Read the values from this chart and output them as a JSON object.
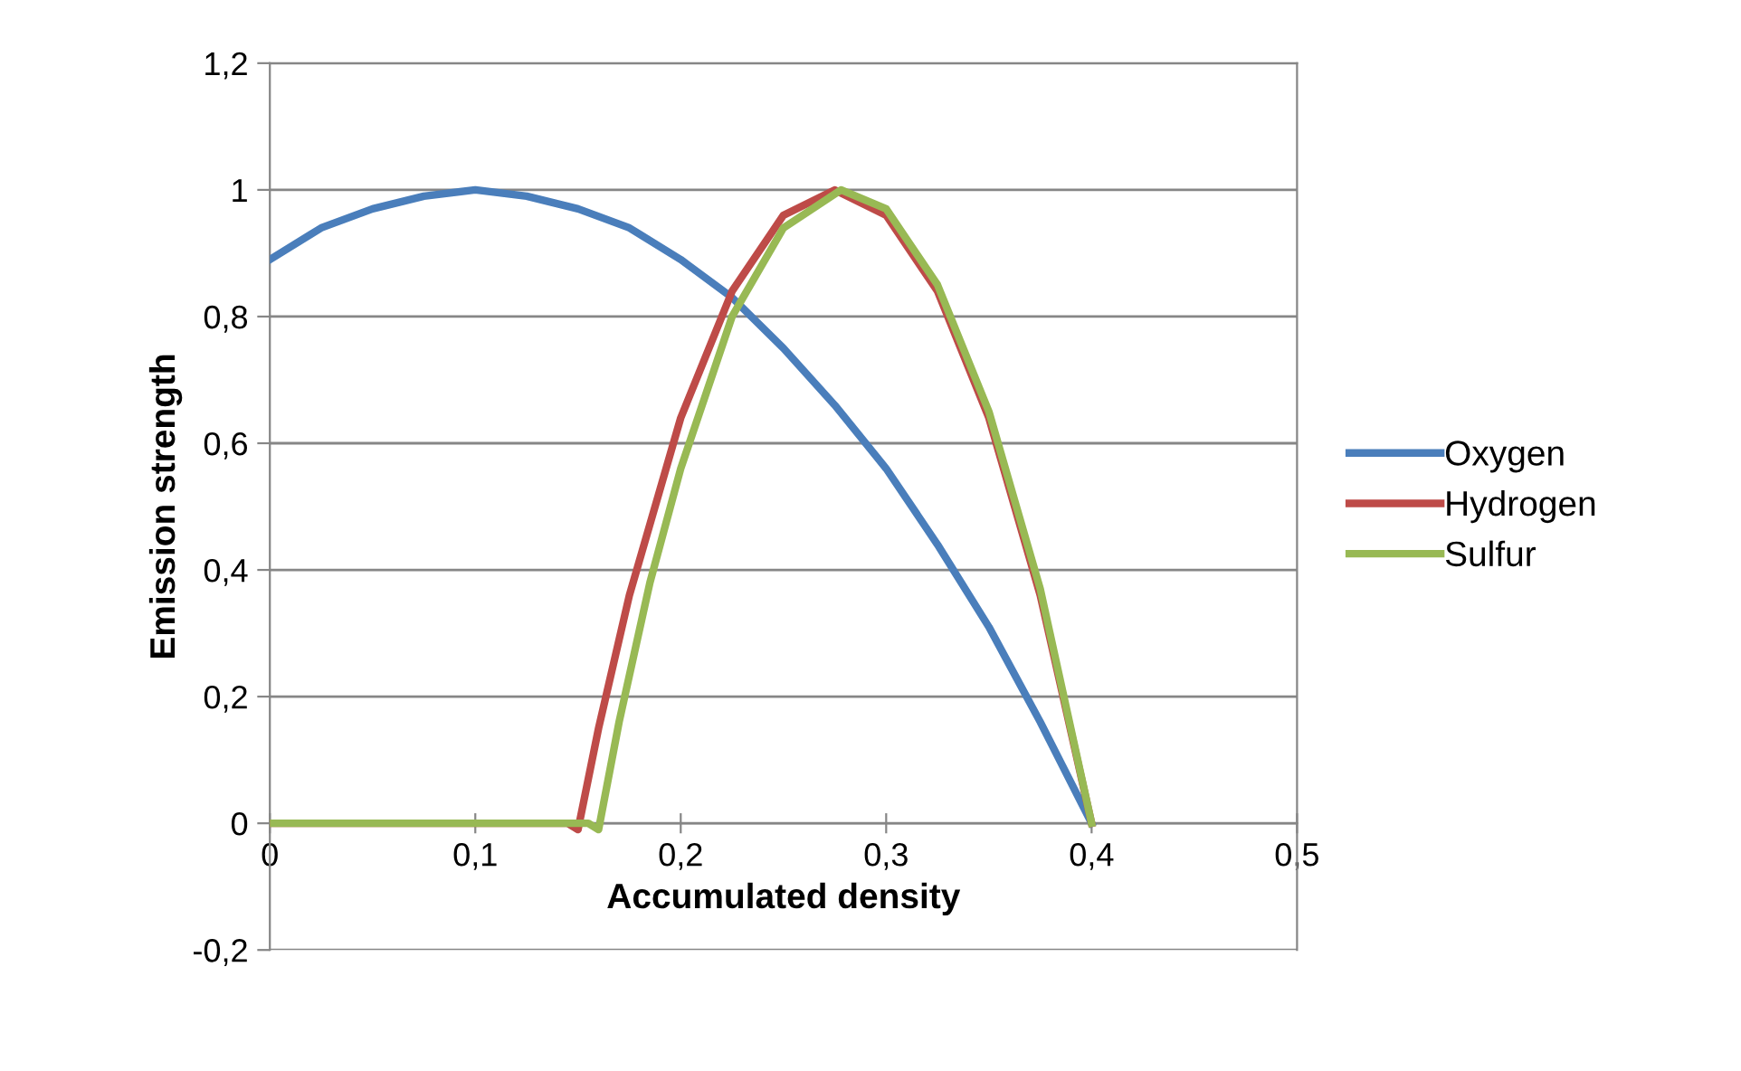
{
  "chart_data": {
    "type": "line",
    "xlabel": "Accumulated density",
    "ylabel": "Emission strength",
    "xlim": [
      0,
      0.5
    ],
    "ylim": [
      -0.2,
      1.2
    ],
    "xticks": [
      0,
      {
        "value": 0.1,
        "label": "0,1"
      },
      {
        "value": 0.2,
        "label": "0,2"
      },
      {
        "value": 0.3,
        "label": "0,3"
      },
      {
        "value": 0.4,
        "label": "0,4"
      },
      {
        "value": 0.5,
        "label": "0,5"
      }
    ],
    "yticks": [
      {
        "value": -0.2,
        "label": "-0,2"
      },
      0,
      {
        "value": 0.2,
        "label": "0,2"
      },
      {
        "value": 0.4,
        "label": "0,4"
      },
      {
        "value": 0.6,
        "label": "0,6"
      },
      {
        "value": 0.8,
        "label": "0,8"
      },
      1,
      {
        "value": 1.2,
        "label": "1,2"
      }
    ],
    "grid": "y",
    "legend": "right",
    "marker": "none",
    "line_style": "solid",
    "series": [
      {
        "name": "Oxygen",
        "color": "#4a7ebb",
        "x": [
          0,
          0.025,
          0.05,
          0.075,
          0.1,
          0.125,
          0.15,
          0.175,
          0.2,
          0.225,
          0.25,
          0.275,
          0.3,
          0.325,
          0.35,
          0.375,
          0.4
        ],
        "values": [
          0.89,
          0.94,
          0.97,
          0.99,
          1,
          0.99,
          0.97,
          0.94,
          0.89,
          0.83,
          0.75,
          0.66,
          0.56,
          0.44,
          0.31,
          0.16,
          0
        ]
      },
      {
        "name": "Hydrogen",
        "color": "#be4b48",
        "x": [
          0,
          0.145,
          0.15,
          0.16,
          0.175,
          0.2,
          0.225,
          0.25,
          0.275,
          0.3,
          0.325,
          0.35,
          0.375,
          0.4
        ],
        "values": [
          0,
          0,
          -0.01,
          0.15,
          0.36,
          0.64,
          0.84,
          0.96,
          1,
          0.96,
          0.84,
          0.64,
          0.36,
          0
        ]
      },
      {
        "name": "Sulfur",
        "color": "#98b954",
        "x": [
          0,
          0.155,
          0.16,
          0.17,
          0.185,
          0.2,
          0.225,
          0.25,
          0.278,
          0.3,
          0.325,
          0.35,
          0.375,
          0.4
        ],
        "values": [
          0,
          0,
          -0.01,
          0.16,
          0.38,
          0.56,
          0.8,
          0.94,
          1,
          0.97,
          0.85,
          0.65,
          0.37,
          0
        ]
      }
    ]
  }
}
